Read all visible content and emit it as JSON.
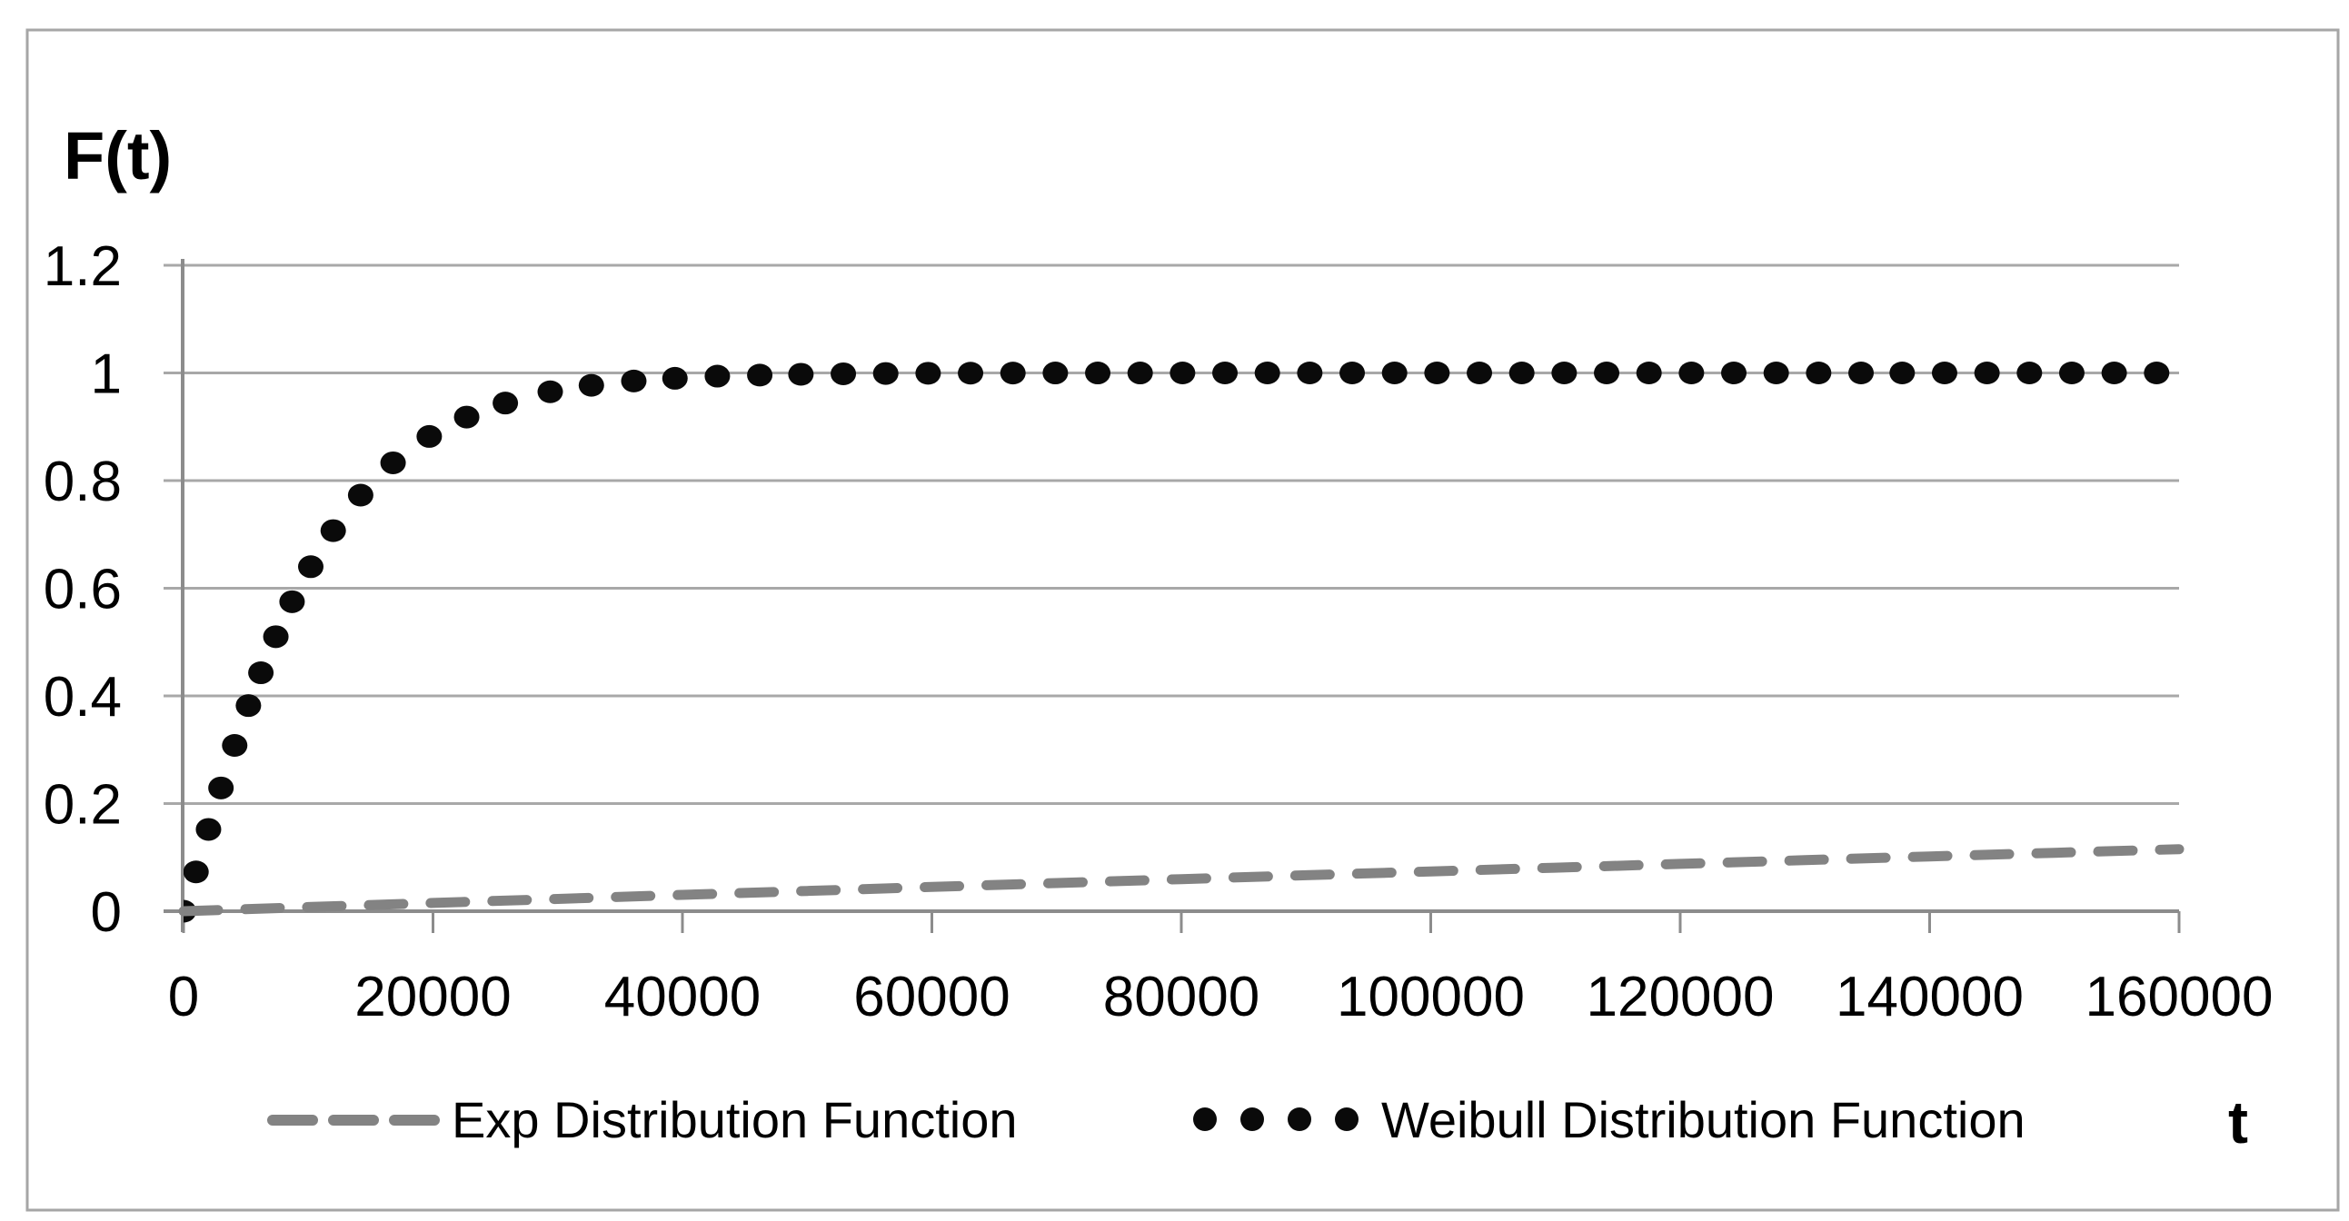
{
  "figure": {
    "background_color": "#ffffff",
    "border_color": "#a6a6a6"
  },
  "chart_data": {
    "type": "scatter",
    "title": "",
    "y_axis_title": "F(t)",
    "x_axis_title": "t",
    "xlim": [
      0,
      160000
    ],
    "ylim": [
      0,
      1.2
    ],
    "grid": "horizontal",
    "grid_color": "#a8a8a8",
    "axis_color": "#8c8c8c",
    "legend_position": "bottom",
    "x_ticks": [
      0,
      20000,
      40000,
      60000,
      80000,
      100000,
      120000,
      140000,
      160000
    ],
    "x_tick_labels": [
      "0",
      "20000",
      "40000",
      "60000",
      "80000",
      "100000",
      "120000",
      "140000",
      "160000"
    ],
    "y_ticks": [
      0,
      0.2,
      0.4,
      0.6,
      0.8,
      1,
      1.2
    ],
    "y_tick_labels": [
      "0",
      "0.2",
      "0.4",
      "0.6",
      "0.8",
      "1",
      "1.2"
    ],
    "series": [
      {
        "name": "Exp Distribution Function",
        "type": "line",
        "style": "dashed",
        "color": "#838383",
        "points": [
          [
            0,
            0
          ],
          [
            10000,
            0.0077
          ],
          [
            20000,
            0.0153
          ],
          [
            30000,
            0.0228
          ],
          [
            40000,
            0.0303
          ],
          [
            50000,
            0.0377
          ],
          [
            60000,
            0.0451
          ],
          [
            70000,
            0.0524
          ],
          [
            80000,
            0.0596
          ],
          [
            90000,
            0.0668
          ],
          [
            100000,
            0.0739
          ],
          [
            110000,
            0.0809
          ],
          [
            120000,
            0.0879
          ],
          [
            130000,
            0.0948
          ],
          [
            140000,
            0.1017
          ],
          [
            150000,
            0.1085
          ],
          [
            160000,
            0.1153
          ]
        ]
      },
      {
        "name": "Weibull Distribution Function",
        "type": "scatter",
        "style": "dots",
        "color": "#0a0a0a",
        "points": [
          [
            0,
            0
          ],
          [
            1000,
            0.073
          ],
          [
            2000,
            0.152
          ],
          [
            3000,
            0.229
          ],
          [
            4100,
            0.308
          ],
          [
            5200,
            0.382
          ],
          [
            6200,
            0.443
          ],
          [
            7400,
            0.51
          ],
          [
            8700,
            0.575
          ],
          [
            10200,
            0.64
          ],
          [
            12000,
            0.707
          ],
          [
            14200,
            0.773
          ],
          [
            16800,
            0.833
          ],
          [
            19700,
            0.882
          ],
          [
            22700,
            0.918
          ],
          [
            25800,
            0.944
          ],
          [
            29400,
            0.965
          ],
          [
            32700,
            0.977
          ],
          [
            36100,
            0.985
          ],
          [
            39400,
            0.99
          ],
          [
            42800,
            0.994
          ],
          [
            46200,
            0.996
          ],
          [
            49500,
            0.9975
          ],
          [
            52900,
            0.9984
          ],
          [
            56300,
            0.999
          ],
          [
            59700,
            0.9994
          ],
          [
            63100,
            0.9996
          ],
          [
            66500,
            0.9998
          ],
          [
            69900,
            0.9999
          ],
          [
            73300,
            0.9999
          ],
          [
            76700,
            0.9999
          ],
          [
            80100,
            1.0
          ],
          [
            83500,
            1.0
          ],
          [
            86900,
            1.0
          ],
          [
            90300,
            1.0
          ],
          [
            93700,
            1.0
          ],
          [
            97100,
            1.0
          ],
          [
            100500,
            1.0
          ],
          [
            103900,
            1.0
          ],
          [
            107300,
            1.0
          ],
          [
            110700,
            1.0
          ],
          [
            114100,
            1.0
          ],
          [
            117500,
            1.0
          ],
          [
            120900,
            1.0
          ],
          [
            124300,
            1.0
          ],
          [
            127700,
            1.0
          ],
          [
            131100,
            1.0
          ],
          [
            134500,
            1.0
          ],
          [
            137800,
            1.0
          ],
          [
            141200,
            1.0
          ],
          [
            144600,
            1.0
          ],
          [
            148000,
            1.0
          ],
          [
            151400,
            1.0
          ],
          [
            154800,
            1.0
          ],
          [
            158200,
            1.0
          ]
        ]
      }
    ]
  }
}
